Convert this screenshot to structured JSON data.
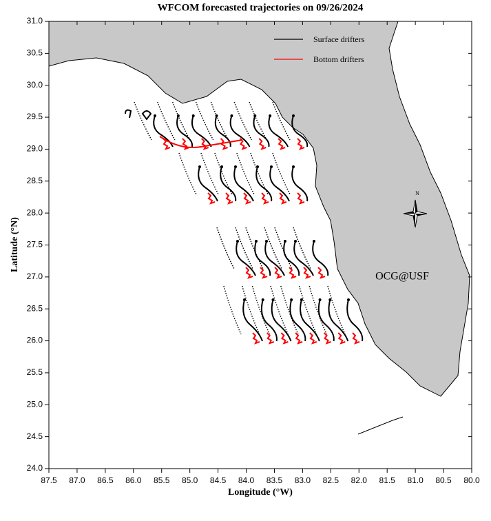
{
  "map": {
    "title": "WFCOM forecasted trajectories on 09/26/2024",
    "x_axis": {
      "label": "Longitude (°W)",
      "lim": [
        87.5,
        80.0
      ],
      "ticks": [
        87.5,
        {
          "value": 87,
          "label": "87.0"
        },
        86.5,
        {
          "value": 86,
          "label": "86.0"
        },
        85.5,
        {
          "value": 85,
          "label": "85.0"
        },
        84.5,
        {
          "value": 84,
          "label": "84.0"
        },
        83.5,
        {
          "value": 83,
          "label": "83.0"
        },
        82.5,
        {
          "value": 82,
          "label": "82.0"
        },
        81.5,
        {
          "value": 81,
          "label": "81.0"
        },
        80.5,
        {
          "value": 80,
          "label": "80.0"
        }
      ]
    },
    "y_axis": {
      "label": "Latitude (°N)",
      "lim": [
        24.0,
        31.0
      ],
      "ticks": [
        {
          "value": 24,
          "label": "24.0"
        },
        24.5,
        {
          "value": 25,
          "label": "25.0"
        },
        25.5,
        {
          "value": 26,
          "label": "26.0"
        },
        26.5,
        {
          "value": 27,
          "label": "27.0"
        },
        27.5,
        {
          "value": 28,
          "label": "28.0"
        },
        28.5,
        {
          "value": 29,
          "label": "29.0"
        },
        29.5,
        {
          "value": 30,
          "label": "30.0"
        },
        30.5,
        {
          "value": 31,
          "label": "31.0"
        }
      ]
    },
    "legend": [
      {
        "label": "Surface drifters",
        "color": "#000000"
      },
      {
        "label": "Bottom drifters",
        "color": "#ff0000"
      }
    ],
    "watermark": "OCG@USF",
    "compass": "N"
  }
}
